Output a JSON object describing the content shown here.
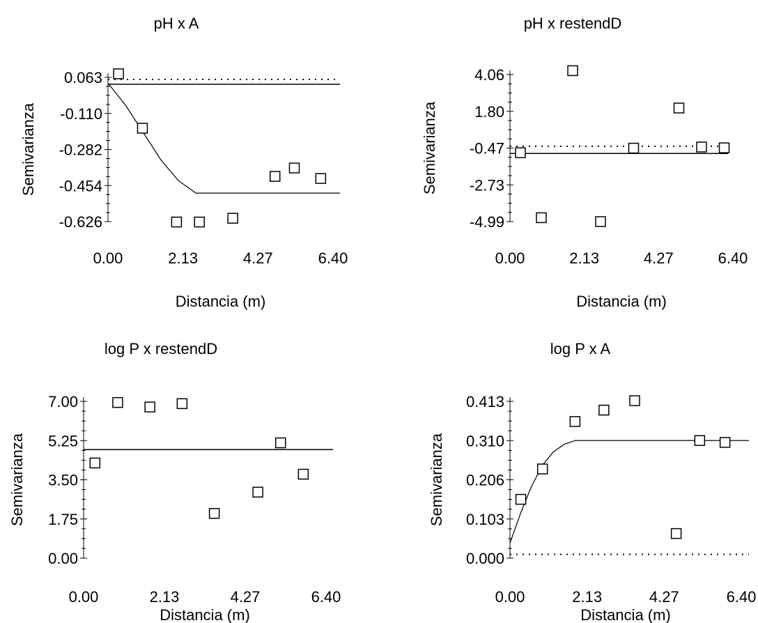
{
  "chart_data": [
    {
      "type": "scatter",
      "title": "pH x A",
      "xlabel": "Distancia (m)",
      "ylabel": "Semivarianza",
      "xlim": [
        0.0,
        6.4
      ],
      "ylim": [
        -0.626,
        0.063
      ],
      "xticks": [
        "0.00",
        "2.13",
        "4.27",
        "6.40"
      ],
      "yticks": [
        "-0.626",
        "-0.454",
        "-0.282",
        "-0.110",
        "0.063"
      ],
      "points": [
        {
          "x": 0.3,
          "y": 0.08
        },
        {
          "x": 0.98,
          "y": -0.18
        },
        {
          "x": 1.95,
          "y": -0.628
        },
        {
          "x": 2.6,
          "y": -0.628
        },
        {
          "x": 3.55,
          "y": -0.61
        },
        {
          "x": 4.75,
          "y": -0.41
        },
        {
          "x": 5.3,
          "y": -0.37
        },
        {
          "x": 6.05,
          "y": -0.42
        }
      ],
      "model_line": [
        {
          "x": 0.0,
          "y": 0.035
        },
        {
          "x": 0.5,
          "y": -0.07
        },
        {
          "x": 1.0,
          "y": -0.2
        },
        {
          "x": 1.5,
          "y": -0.33
        },
        {
          "x": 2.0,
          "y": -0.43
        },
        {
          "x": 2.5,
          "y": -0.49
        },
        {
          "x": 7.0,
          "y": -0.49
        }
      ],
      "reference_line": 0.03,
      "dotted_line": 0.053
    },
    {
      "type": "scatter",
      "title": "pH x restendD",
      "xlabel": "Distancia (m)",
      "ylabel": "Semivarianza",
      "xlim": [
        0.0,
        6.4
      ],
      "ylim": [
        -4.99,
        4.06
      ],
      "xticks": [
        "0.00",
        "2.13",
        "4.27",
        "6.40"
      ],
      "yticks": [
        "-4.99",
        "-2.73",
        "-0.47",
        "1.80",
        "4.06"
      ],
      "points": [
        {
          "x": 0.3,
          "y": -0.75
        },
        {
          "x": 0.9,
          "y": -4.75
        },
        {
          "x": 1.8,
          "y": 4.3
        },
        {
          "x": 2.6,
          "y": -4.99
        },
        {
          "x": 3.55,
          "y": -0.47
        },
        {
          "x": 4.85,
          "y": 2.0
        },
        {
          "x": 5.5,
          "y": -0.4
        },
        {
          "x": 6.15,
          "y": -0.45
        }
      ],
      "reference_line": -0.8,
      "dotted_line": -0.35
    },
    {
      "type": "scatter",
      "title": "log P x restendD",
      "xlabel": "Distancia (m)",
      "ylabel": "Semivarianza",
      "xlim": [
        0.0,
        6.4
      ],
      "ylim": [
        0.0,
        7.0
      ],
      "xticks": [
        "0.00",
        "2.13",
        "4.27",
        "6.40"
      ],
      "yticks": [
        "0.00",
        "1.75",
        "3.50",
        "5.25",
        "7.00"
      ],
      "points": [
        {
          "x": 0.3,
          "y": 4.25
        },
        {
          "x": 0.9,
          "y": 6.95
        },
        {
          "x": 1.75,
          "y": 6.75
        },
        {
          "x": 2.6,
          "y": 6.9
        },
        {
          "x": 3.45,
          "y": 2.0
        },
        {
          "x": 4.6,
          "y": 2.95
        },
        {
          "x": 5.2,
          "y": 5.15
        },
        {
          "x": 5.8,
          "y": 3.75
        }
      ],
      "reference_line": 4.85
    },
    {
      "type": "scatter",
      "title": "log P x A",
      "xlabel": "Distancia (m)",
      "ylabel": "Semivarianza",
      "xlim": [
        0.0,
        6.4
      ],
      "ylim": [
        0.0,
        0.413
      ],
      "xticks": [
        "0.00",
        "2.13",
        "4.27",
        "6.40"
      ],
      "yticks": [
        "0.000",
        "0.103",
        "0.206",
        "0.310",
        "0.413"
      ],
      "points": [
        {
          "x": 0.3,
          "y": 0.155
        },
        {
          "x": 0.9,
          "y": 0.235
        },
        {
          "x": 1.8,
          "y": 0.36
        },
        {
          "x": 2.6,
          "y": 0.39
        },
        {
          "x": 3.45,
          "y": 0.415
        },
        {
          "x": 4.6,
          "y": 0.065
        },
        {
          "x": 5.25,
          "y": 0.31
        },
        {
          "x": 5.95,
          "y": 0.305
        }
      ],
      "model_line": [
        {
          "x": 0.0,
          "y": 0.04
        },
        {
          "x": 0.3,
          "y": 0.12
        },
        {
          "x": 0.6,
          "y": 0.19
        },
        {
          "x": 0.9,
          "y": 0.245
        },
        {
          "x": 1.2,
          "y": 0.28
        },
        {
          "x": 1.5,
          "y": 0.3
        },
        {
          "x": 1.8,
          "y": 0.31
        },
        {
          "x": 6.8,
          "y": 0.31
        }
      ],
      "dotted_line": 0.01
    }
  ]
}
